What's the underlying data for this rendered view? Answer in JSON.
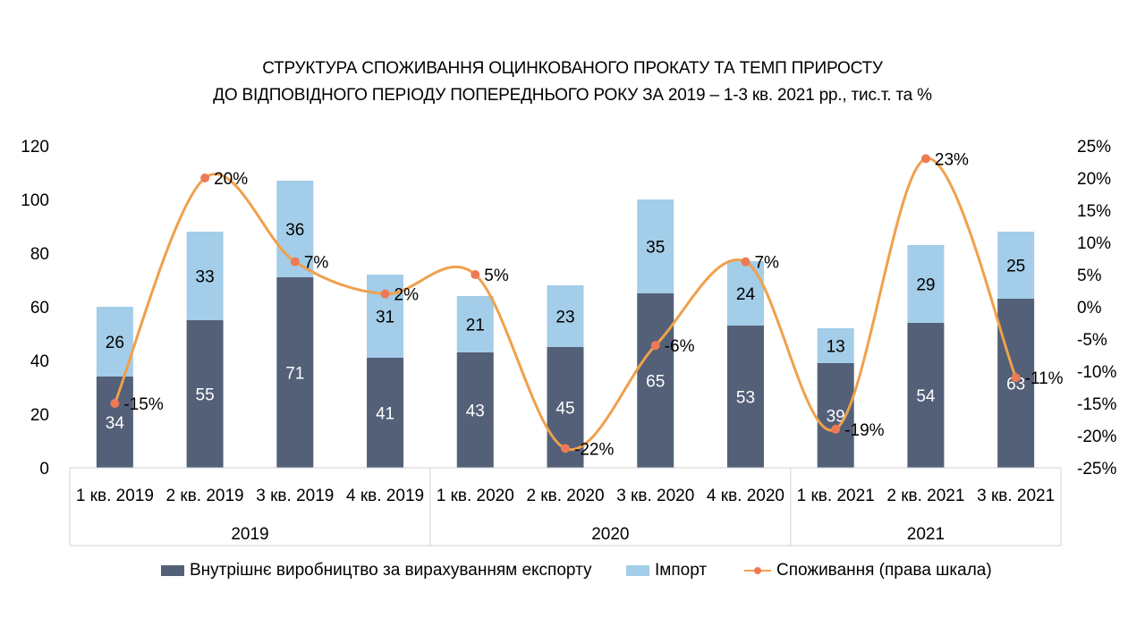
{
  "chart_data": {
    "type": "bar",
    "title": "СТРУКТУРА СПОЖИВАННЯ ОЦИНКОВАНОГО ПРОКАТУ ТА ТЕМП ПРИРОСТУ",
    "subtitle": "ДО ВІДПОВІДНОГО ПЕРІОДУ ПОПЕРЕДНЬОГО РОКУ ЗА 2019 – 1-3 кв. 2021 рр., тис.т. та %",
    "categories": [
      "1 кв. 2019",
      "2 кв. 2019",
      "3 кв. 2019",
      "4 кв. 2019",
      "1 кв. 2020",
      "2 кв. 2020",
      "3 кв. 2020",
      "4 кв. 2020",
      "1 кв. 2021",
      "2 кв. 2021",
      "3 кв. 2021"
    ],
    "groups": [
      {
        "label": "2019",
        "start": 0,
        "end": 3
      },
      {
        "label": "2020",
        "start": 4,
        "end": 7
      },
      {
        "label": "2021",
        "start": 8,
        "end": 10
      }
    ],
    "series": [
      {
        "name": "Внутрішнє виробництво за вирахуванням експорту",
        "kind": "bar",
        "axis": "left",
        "color": "#536078",
        "values": [
          34,
          55,
          71,
          41,
          43,
          45,
          65,
          53,
          39,
          54,
          63
        ]
      },
      {
        "name": "Імпорт",
        "kind": "bar",
        "axis": "left",
        "color": "#a3cde8",
        "values": [
          26,
          33,
          36,
          31,
          21,
          23,
          35,
          24,
          13,
          29,
          25
        ]
      },
      {
        "name": "Споживання (права шкала)",
        "kind": "line",
        "axis": "right",
        "color": "#f0a04b",
        "marker_color": "#ee7a55",
        "values": [
          -15,
          20,
          7,
          2,
          5,
          -22,
          -6,
          7,
          -19,
          23,
          -11
        ],
        "labels": [
          "-15%",
          "20%",
          "7%",
          "2%",
          "5%",
          "-22%",
          "-6%",
          "7%",
          "-19%",
          "23%",
          "-11%"
        ]
      }
    ],
    "y_left": {
      "min": 0,
      "max": 120,
      "ticks": [
        "0",
        "20",
        "40",
        "60",
        "80",
        "100",
        "120"
      ]
    },
    "y_right": {
      "min": -25,
      "max": 25,
      "ticks": [
        "-25%",
        "-20%",
        "-15%",
        "-10%",
        "-5%",
        "0%",
        "5%",
        "10%",
        "15%",
        "20%",
        "25%"
      ]
    },
    "grid": false,
    "legend_position": "bottom"
  }
}
